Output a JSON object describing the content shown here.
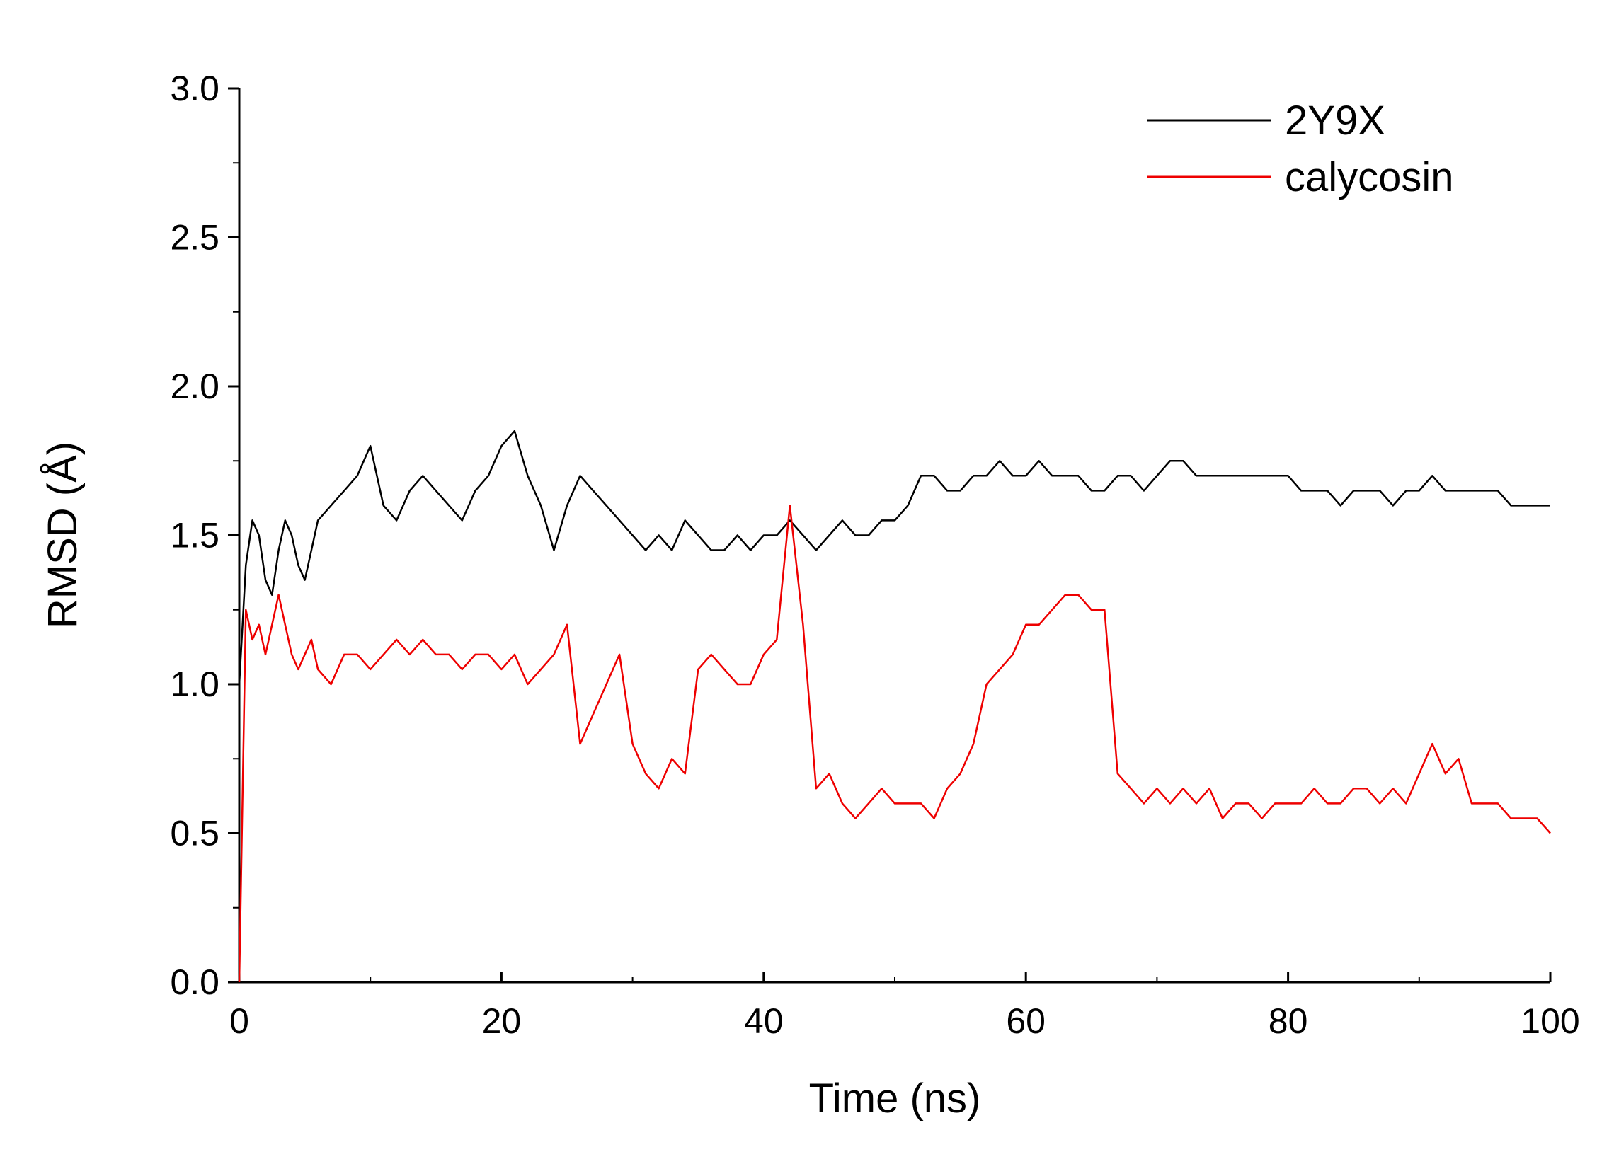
{
  "chart_data": {
    "type": "line",
    "xlabel": "Time (ns)",
    "ylabel": "RMSD (Å)",
    "xlim": [
      0,
      100
    ],
    "ylim": [
      0,
      3.0
    ],
    "x_ticks": [
      "0",
      "20",
      "40",
      "60",
      "80",
      "100"
    ],
    "y_ticks": [
      "0.0",
      "0.5",
      "1.0",
      "1.5",
      "2.0",
      "2.5",
      "3.0"
    ],
    "grid": false,
    "legend_position": "top-right",
    "series": [
      {
        "name": "2Y9X",
        "color": "#000000",
        "x": [
          0,
          0.5,
          1,
          1.5,
          2,
          2.5,
          3,
          3.5,
          4,
          4.5,
          5,
          5.5,
          6,
          7,
          8,
          9,
          10,
          11,
          12,
          13,
          14,
          15,
          16,
          17,
          18,
          19,
          20,
          21,
          22,
          23,
          24,
          25,
          26,
          27,
          28,
          29,
          30,
          31,
          32,
          33,
          34,
          35,
          36,
          37,
          38,
          39,
          40,
          41,
          42,
          43,
          44,
          45,
          46,
          47,
          48,
          49,
          50,
          51,
          52,
          53,
          54,
          55,
          56,
          57,
          58,
          59,
          60,
          61,
          62,
          63,
          64,
          65,
          66,
          67,
          68,
          69,
          70,
          71,
          72,
          73,
          74,
          75,
          76,
          77,
          78,
          79,
          80,
          81,
          82,
          83,
          84,
          85,
          86,
          87,
          88,
          89,
          90,
          91,
          92,
          93,
          94,
          95,
          96,
          97,
          98,
          99,
          100
        ],
        "values": [
          1.0,
          1.4,
          1.55,
          1.5,
          1.35,
          1.3,
          1.45,
          1.55,
          1.5,
          1.4,
          1.35,
          1.45,
          1.55,
          1.6,
          1.65,
          1.7,
          1.8,
          1.6,
          1.55,
          1.65,
          1.7,
          1.65,
          1.6,
          1.55,
          1.65,
          1.7,
          1.8,
          1.85,
          1.7,
          1.6,
          1.45,
          1.6,
          1.7,
          1.65,
          1.6,
          1.55,
          1.5,
          1.45,
          1.5,
          1.45,
          1.55,
          1.5,
          1.45,
          1.45,
          1.5,
          1.45,
          1.5,
          1.5,
          1.55,
          1.5,
          1.45,
          1.5,
          1.55,
          1.5,
          1.5,
          1.55,
          1.55,
          1.6,
          1.7,
          1.7,
          1.65,
          1.65,
          1.7,
          1.7,
          1.75,
          1.7,
          1.7,
          1.75,
          1.7,
          1.7,
          1.7,
          1.65,
          1.65,
          1.7,
          1.7,
          1.65,
          1.7,
          1.75,
          1.75,
          1.7,
          1.7,
          1.7,
          1.7,
          1.7,
          1.7,
          1.7,
          1.7,
          1.65,
          1.65,
          1.65,
          1.6,
          1.65,
          1.65,
          1.65,
          1.6,
          1.65,
          1.65,
          1.7,
          1.65,
          1.65,
          1.65,
          1.65,
          1.65,
          1.6,
          1.6,
          1.6,
          1.6
        ]
      },
      {
        "name": "calycosin",
        "color": "#ee0000",
        "x": [
          0,
          0.5,
          1,
          1.5,
          2,
          2.5,
          3,
          3.5,
          4,
          4.5,
          5,
          5.5,
          6,
          7,
          8,
          9,
          10,
          11,
          12,
          13,
          14,
          15,
          16,
          17,
          18,
          19,
          20,
          21,
          22,
          23,
          24,
          25,
          26,
          27,
          28,
          29,
          30,
          31,
          32,
          33,
          34,
          35,
          36,
          37,
          38,
          39,
          40,
          41,
          42,
          43,
          44,
          45,
          46,
          47,
          48,
          49,
          50,
          51,
          52,
          53,
          54,
          55,
          56,
          57,
          58,
          59,
          60,
          61,
          62,
          63,
          64,
          65,
          66,
          67,
          68,
          69,
          70,
          71,
          72,
          73,
          74,
          75,
          76,
          77,
          78,
          79,
          80,
          81,
          82,
          83,
          84,
          85,
          86,
          87,
          88,
          89,
          90,
          91,
          92,
          93,
          94,
          95,
          96,
          97,
          98,
          99,
          100
        ],
        "values": [
          0.0,
          1.25,
          1.15,
          1.2,
          1.1,
          1.2,
          1.3,
          1.2,
          1.1,
          1.05,
          1.1,
          1.15,
          1.05,
          1.0,
          1.1,
          1.1,
          1.05,
          1.1,
          1.15,
          1.1,
          1.15,
          1.1,
          1.1,
          1.05,
          1.1,
          1.1,
          1.05,
          1.1,
          1.0,
          1.05,
          1.1,
          1.2,
          0.8,
          0.9,
          1.0,
          1.1,
          0.8,
          0.7,
          0.65,
          0.75,
          0.7,
          1.05,
          1.1,
          1.05,
          1.0,
          1.0,
          1.1,
          1.15,
          1.6,
          1.2,
          0.65,
          0.7,
          0.6,
          0.55,
          0.6,
          0.65,
          0.6,
          0.6,
          0.6,
          0.55,
          0.65,
          0.7,
          0.8,
          1.0,
          1.05,
          1.1,
          1.2,
          1.2,
          1.25,
          1.3,
          1.3,
          1.25,
          1.25,
          0.7,
          0.65,
          0.6,
          0.65,
          0.6,
          0.65,
          0.6,
          0.65,
          0.55,
          0.6,
          0.6,
          0.55,
          0.6,
          0.6,
          0.6,
          0.65,
          0.6,
          0.6,
          0.65,
          0.65,
          0.6,
          0.65,
          0.6,
          0.7,
          0.8,
          0.7,
          0.75,
          0.6,
          0.6,
          0.6,
          0.55,
          0.55,
          0.55,
          0.5
        ]
      }
    ]
  }
}
